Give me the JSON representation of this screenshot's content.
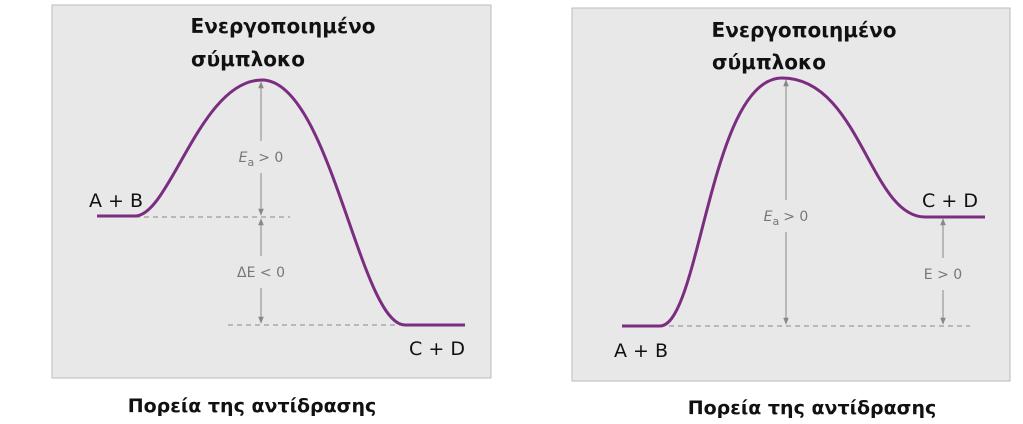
{
  "panels": [
    {
      "title": [
        "Ενεργοποιημένο",
        "σύμπλοκο"
      ],
      "reactants": "A + B",
      "products": "C + D",
      "activation": {
        "symbol": "E",
        "subscript": "a",
        "relation": "> 0"
      },
      "energy_change": "ΔE < 0",
      "caption": "Πορεία της αντίδρασης"
    },
    {
      "title": [
        "Ενεργοποιημένο",
        "σύμπλοκο"
      ],
      "reactants": "A + B",
      "products": "C + D",
      "activation": {
        "symbol": "E",
        "subscript": "a",
        "relation": "> 0"
      },
      "energy_change": "E > 0",
      "caption": "Πορεία της αντίδρασης"
    }
  ]
}
